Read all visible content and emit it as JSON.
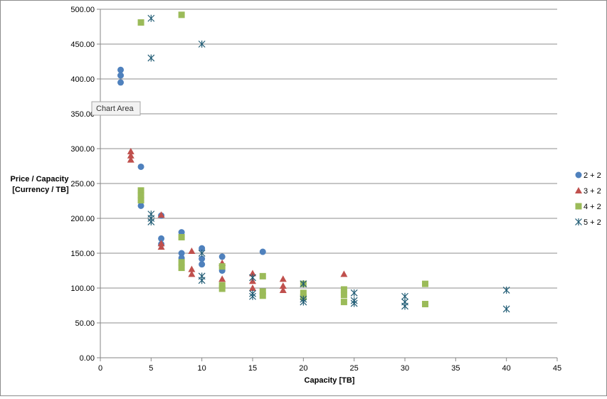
{
  "chart_data": {
    "type": "scatter",
    "title": "",
    "xlabel": "Capacity [TB]",
    "ylabel_lines": [
      "Price / Capacity",
      "[Currency / TB]"
    ],
    "xlim": [
      0,
      45
    ],
    "ylim": [
      0,
      500
    ],
    "x_ticks": [
      0,
      5,
      10,
      15,
      20,
      25,
      30,
      35,
      40,
      45
    ],
    "y_ticks": [
      0,
      50,
      100,
      150,
      200,
      250,
      300,
      350,
      400,
      450,
      500
    ],
    "y_tick_labels": [
      "0.00",
      "50.00",
      "100.00",
      "150.00",
      "200.00",
      "250.00",
      "300.00",
      "350.00",
      "400.00",
      "450.00",
      "500.00"
    ],
    "grid": "horizontal",
    "legend_position": "right",
    "series": [
      {
        "name": "2 + 2",
        "marker": "circle",
        "color": "#4f81bd",
        "points": [
          [
            2,
            413
          ],
          [
            2,
            405
          ],
          [
            2,
            395
          ],
          [
            4,
            274
          ],
          [
            4,
            218
          ],
          [
            6,
            204
          ],
          [
            6,
            171
          ],
          [
            6,
            163
          ],
          [
            8,
            180
          ],
          [
            8,
            150
          ],
          [
            8,
            143
          ],
          [
            10,
            157
          ],
          [
            10,
            142
          ],
          [
            10,
            134
          ],
          [
            12,
            145
          ],
          [
            12,
            125
          ],
          [
            16,
            152
          ]
        ]
      },
      {
        "name": "3 + 2",
        "marker": "triangle",
        "color": "#c0504d",
        "points": [
          [
            3,
            296
          ],
          [
            3,
            290
          ],
          [
            3,
            284
          ],
          [
            6,
            205
          ],
          [
            6,
            164
          ],
          [
            6,
            159
          ],
          [
            9,
            153
          ],
          [
            9,
            127
          ],
          [
            9,
            120
          ],
          [
            12,
            136
          ],
          [
            12,
            113
          ],
          [
            15,
            121
          ],
          [
            15,
            110
          ],
          [
            15,
            100
          ],
          [
            18,
            113
          ],
          [
            18,
            103
          ],
          [
            18,
            97
          ],
          [
            24,
            120
          ]
        ]
      },
      {
        "name": "4 + 2",
        "marker": "square",
        "color": "#9bbb59",
        "points": [
          [
            4,
            481
          ],
          [
            4,
            240
          ],
          [
            4,
            233
          ],
          [
            4,
            226
          ],
          [
            8,
            492
          ],
          [
            8,
            173
          ],
          [
            8,
            137
          ],
          [
            8,
            129
          ],
          [
            12,
            131
          ],
          [
            12,
            104
          ],
          [
            12,
            99
          ],
          [
            16,
            117
          ],
          [
            16,
            95
          ],
          [
            16,
            89
          ],
          [
            20,
            106
          ],
          [
            20,
            93
          ],
          [
            20,
            87
          ],
          [
            24,
            98
          ],
          [
            24,
            90
          ],
          [
            24,
            80
          ],
          [
            32,
            106
          ],
          [
            32,
            77
          ]
        ]
      },
      {
        "name": "5 + 2",
        "marker": "asterisk",
        "color": "#1f5b74",
        "points": [
          [
            5,
            487
          ],
          [
            5,
            430
          ],
          [
            5,
            206
          ],
          [
            5,
            200
          ],
          [
            5,
            195
          ],
          [
            10,
            450
          ],
          [
            10,
            150
          ],
          [
            10,
            117
          ],
          [
            10,
            111
          ],
          [
            15,
            115
          ],
          [
            15,
            92
          ],
          [
            15,
            88
          ],
          [
            20,
            106
          ],
          [
            20,
            84
          ],
          [
            20,
            80
          ],
          [
            25,
            93
          ],
          [
            25,
            82
          ],
          [
            25,
            78
          ],
          [
            30,
            88
          ],
          [
            30,
            80
          ],
          [
            30,
            74
          ],
          [
            40,
            97
          ],
          [
            40,
            70
          ]
        ]
      }
    ]
  },
  "tooltip": {
    "text": "Chart Area"
  }
}
